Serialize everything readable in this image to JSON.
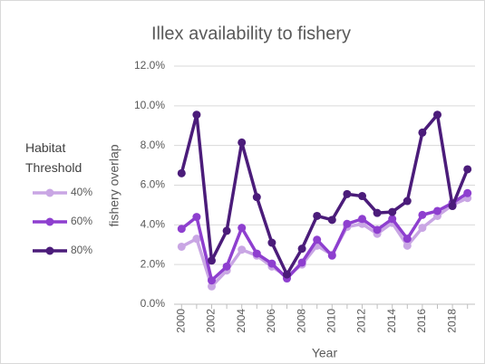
{
  "chart_data": {
    "type": "line",
    "title": "Illex availability to fishery",
    "x_label": "Year",
    "y_label": "fishery overlap",
    "legend_title": "Habitat Threshold",
    "legend": "left",
    "x": [
      2000,
      2001,
      2002,
      2003,
      2004,
      2005,
      2006,
      2007,
      2008,
      2009,
      2010,
      2011,
      2012,
      2013,
      2014,
      2015,
      2016,
      2017,
      2018,
      2019
    ],
    "xlim": [
      1999.5,
      2019.5
    ],
    "xticks": [
      2000,
      2002,
      2004,
      2006,
      2008,
      2010,
      2012,
      2014,
      2016,
      2018
    ],
    "ylim": [
      0,
      12
    ],
    "yticks": [
      {
        "value": 0,
        "label": "0.0%"
      },
      {
        "value": 2,
        "label": "2.0%"
      },
      {
        "value": 4,
        "label": "4.0%"
      },
      {
        "value": 6,
        "label": "6.0%"
      },
      {
        "value": 8,
        "label": "8.0%"
      },
      {
        "value": 10,
        "label": "10.0%"
      },
      {
        "value": 12,
        "label": "12.0%"
      }
    ],
    "grid": true,
    "series": [
      {
        "name": "40%",
        "color": "#c9a6e4",
        "values": [
          2.9,
          3.3,
          0.9,
          1.7,
          2.75,
          2.45,
          1.9,
          1.4,
          2.0,
          2.95,
          2.5,
          3.9,
          4.05,
          3.55,
          4.1,
          2.95,
          3.85,
          4.45,
          5.0,
          5.35
        ]
      },
      {
        "name": "60%",
        "color": "#8e3fcf",
        "values": [
          3.8,
          4.4,
          1.2,
          1.9,
          3.85,
          2.55,
          2.05,
          1.3,
          2.1,
          3.25,
          2.45,
          4.05,
          4.3,
          3.75,
          4.3,
          3.3,
          4.5,
          4.7,
          5.1,
          5.6
        ]
      },
      {
        "name": "80%",
        "color": "#4b1c7a",
        "values": [
          6.6,
          9.55,
          2.2,
          3.7,
          8.15,
          5.4,
          3.1,
          1.5,
          2.8,
          4.45,
          4.25,
          5.55,
          5.45,
          4.6,
          4.65,
          5.2,
          8.65,
          9.55,
          4.95,
          6.8
        ]
      }
    ]
  }
}
